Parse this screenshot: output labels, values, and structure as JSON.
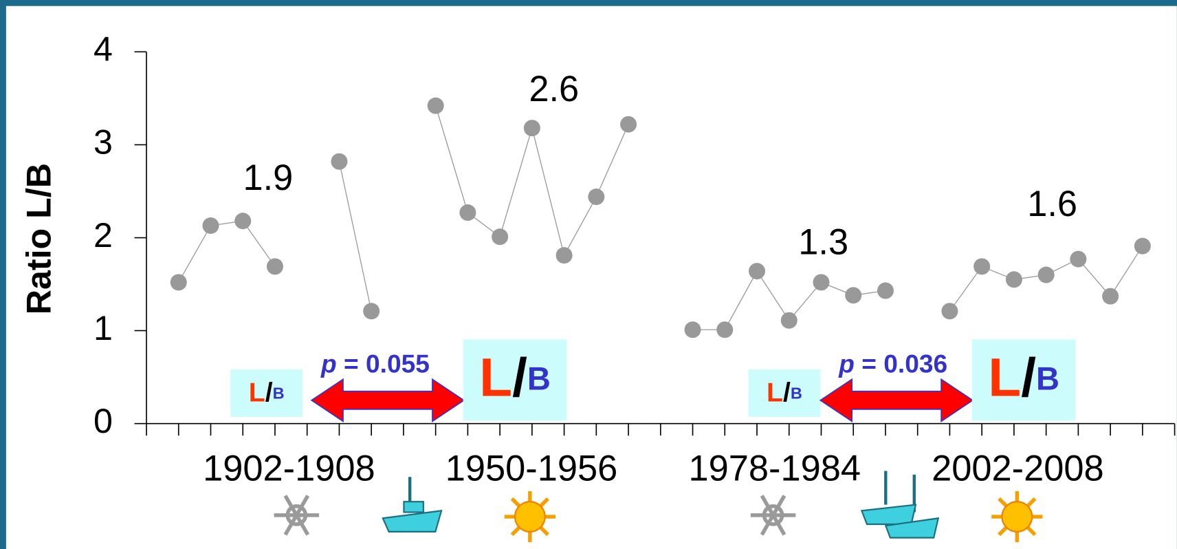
{
  "chart_data": {
    "type": "line",
    "y_label": "Ratio L/B",
    "categories": [
      null,
      null,
      null,
      null,
      null,
      null,
      null,
      null,
      null,
      null,
      null,
      null,
      null,
      null,
      null,
      null,
      null,
      null,
      null,
      null,
      null,
      null,
      null,
      null,
      null,
      null,
      null,
      null,
      null,
      null,
      null,
      null,
      null
    ],
    "series": [
      {
        "name": null,
        "color": "#999999",
        "values": [
          null,
          1.52,
          2.13,
          2.18,
          1.69,
          null,
          2.82,
          1.21,
          null,
          3.42,
          2.27,
          2.01,
          3.18,
          1.81,
          2.44,
          3.22,
          null,
          1.01,
          1.01,
          1.64,
          1.11,
          1.52,
          1.38,
          1.43,
          null,
          1.21,
          1.69,
          1.55,
          1.6,
          1.77,
          1.37,
          1.91,
          null
        ]
      }
    ],
    "ylim": [
      0,
      4
    ],
    "yticks": [
      0,
      1,
      2,
      3,
      4
    ],
    "period_labels": [
      "1902-1908",
      "1950-1956",
      "1978-1984",
      "2002-2008"
    ],
    "group_means": [
      "1.9",
      "2.6",
      "1.3",
      "1.6"
    ],
    "ratio_box": {
      "l": "L",
      "slash": "/",
      "b": "B"
    },
    "comparisons": [
      {
        "symbol": "p",
        "text": "= 0.055"
      },
      {
        "symbol": "p",
        "text": "= 0.036"
      }
    ]
  }
}
